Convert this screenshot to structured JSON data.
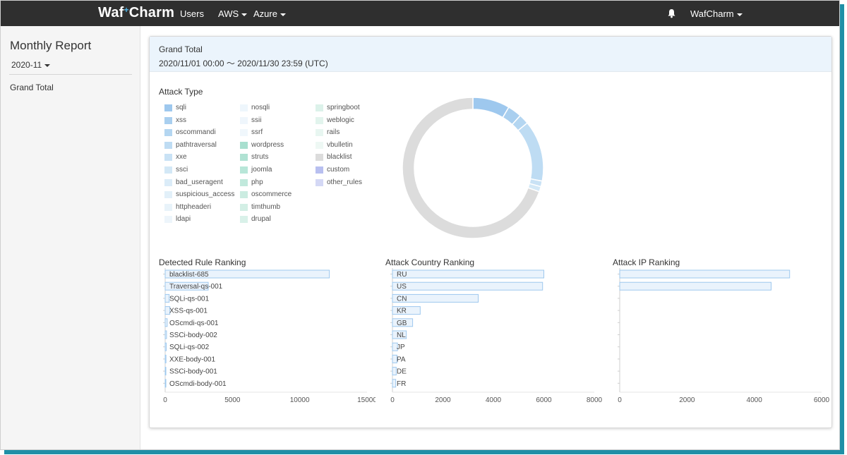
{
  "navbar": {
    "brand": "Waf Charm",
    "brand_main": "Waf",
    "brand_dot": "+",
    "brand_tail": "Charm",
    "users": "Users",
    "aws": "AWS",
    "azure": "Azure",
    "account": "WafCharm",
    "icons": {
      "bell": "bell-icon",
      "caret": "caret-down-icon"
    }
  },
  "sidebar": {
    "title": "Monthly Report",
    "month": "2020-11",
    "links": [
      "Grand Total"
    ]
  },
  "card": {
    "title": "Grand Total",
    "range": "2020/11/01 00:00 〜 2020/11/30 23:59 (UTC)"
  },
  "attack_type": {
    "title": "Attack Type",
    "legend": [
      {
        "label": "sqli",
        "color": "#9ec8ee"
      },
      {
        "label": "xss",
        "color": "#a9cfef"
      },
      {
        "label": "oscommandi",
        "color": "#b4d6f1"
      },
      {
        "label": "pathtraversal",
        "color": "#bedcf3"
      },
      {
        "label": "xxe",
        "color": "#c9e2f5"
      },
      {
        "label": "ssci",
        "color": "#d3e8f6"
      },
      {
        "label": "bad_useragent",
        "color": "#dbecf8"
      },
      {
        "label": "suspicious_access",
        "color": "#e2f0f9"
      },
      {
        "label": "httpheaderi",
        "color": "#e8f3fa"
      },
      {
        "label": "ldapi",
        "color": "#edf5fb"
      },
      {
        "label": "nosqli",
        "color": "#eef6fc"
      },
      {
        "label": "ssii",
        "color": "#eff6fc"
      },
      {
        "label": "ssrf",
        "color": "#f0f7fc"
      },
      {
        "label": "wordpress",
        "color": "#a8dfcf"
      },
      {
        "label": "struts",
        "color": "#b0e2d3"
      },
      {
        "label": "joomla",
        "color": "#b8e6d8"
      },
      {
        "label": "php",
        "color": "#c1e9dc"
      },
      {
        "label": "oscommerce",
        "color": "#cbece1"
      },
      {
        "label": "timthumb",
        "color": "#d3efe5"
      },
      {
        "label": "drupal",
        "color": "#d9f1e9"
      },
      {
        "label": "springboot",
        "color": "#dcf2ea"
      },
      {
        "label": "weblogic",
        "color": "#e2f4ed"
      },
      {
        "label": "rails",
        "color": "#e8f6f1"
      },
      {
        "label": "vbulletin",
        "color": "#eef8f4"
      },
      {
        "label": "blacklist",
        "color": "#dcdcdc"
      },
      {
        "label": "custom",
        "color": "#b8bff0"
      },
      {
        "label": "other_rules",
        "color": "#d4d8f5"
      }
    ]
  },
  "chart_data": [
    {
      "type": "pie",
      "title": "Attack Type",
      "donut": true,
      "slices": [
        {
          "label": "sqli",
          "value": 8.5,
          "color": "#9ec8ee"
        },
        {
          "label": "xss",
          "value": 3.2,
          "color": "#a9cfef"
        },
        {
          "label": "oscommandi",
          "value": 2.3,
          "color": "#b4d6f1"
        },
        {
          "label": "pathtraversal",
          "value": 14.0,
          "color": "#bedcf3"
        },
        {
          "label": "xxe",
          "value": 1.3,
          "color": "#c9e2f5"
        },
        {
          "label": "ssci",
          "value": 1.2,
          "color": "#d3e8f6"
        },
        {
          "label": "blacklist",
          "value": 69.5,
          "color": "#dcdcdc"
        }
      ]
    },
    {
      "type": "bar",
      "orientation": "horizontal",
      "title": "Detected Rule Ranking",
      "categories": [
        "blacklist-685",
        "Traversal-qs-001",
        "SQLi-qs-001",
        "XSS-qs-001",
        "OScmdi-qs-001",
        "SSCi-body-002",
        "SQLi-qs-002",
        "XXE-body-001",
        "SSCi-body-001",
        "OScmdi-body-001"
      ],
      "values": [
        12200,
        3200,
        300,
        350,
        150,
        100,
        80,
        60,
        50,
        40
      ],
      "xlim": [
        0,
        15000
      ],
      "ticks": [
        0,
        5000,
        10000,
        15000
      ]
    },
    {
      "type": "bar",
      "orientation": "horizontal",
      "title": "Attack Country Ranking",
      "categories": [
        "RU",
        "US",
        "CN",
        "KR",
        "GB",
        "NL",
        "JP",
        "PA",
        "DE",
        "FR"
      ],
      "values": [
        6000,
        5950,
        3400,
        1100,
        800,
        550,
        200,
        180,
        150,
        130
      ],
      "xlim": [
        0,
        8000
      ],
      "ticks": [
        0,
        2000,
        4000,
        6000,
        8000
      ]
    },
    {
      "type": "bar",
      "orientation": "horizontal",
      "title": "Attack IP Ranking",
      "categories": [
        "",
        "",
        "",
        "",
        "",
        "",
        "",
        "",
        "",
        ""
      ],
      "values": [
        5050,
        4500,
        0,
        0,
        0,
        0,
        0,
        0,
        0,
        0
      ],
      "xlim": [
        0,
        6000
      ],
      "ticks": [
        0,
        2000,
        4000,
        6000
      ]
    }
  ]
}
